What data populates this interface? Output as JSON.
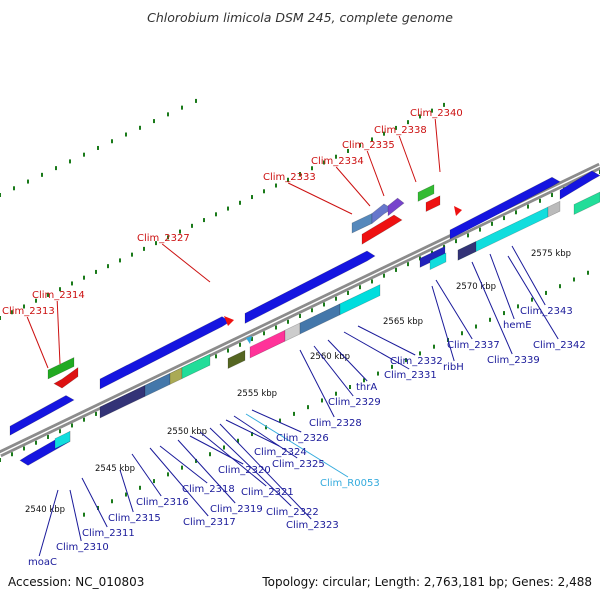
{
  "title": "Chlorobium limicola DSM 245, complete genome",
  "footer": {
    "accession": "Accession: NC_010803",
    "summary": "Topology: circular; Length: 2,763,181 bp; Genes: 2,488"
  },
  "colors": {
    "backbone": "#8c8c8c",
    "forward_gene": "#1515e0",
    "reverse_gene": "#1515e0",
    "highlight_label": "#cc1111",
    "normal_label": "#1a1a9a",
    "rna_label": "#33aadd",
    "dots": "#1a7a1a"
  },
  "scale_marks": [
    "2540 kbp",
    "2545 kbp",
    "2550 kbp",
    "2555 kbp",
    "2560 kbp",
    "2565 kbp",
    "2570 kbp",
    "2575 kbp"
  ],
  "upper_labels": [
    "Clim_2313",
    "Clim_2314",
    "Clim_2327",
    "Clim_2333",
    "Clim_2334",
    "Clim_2335",
    "Clim_2338",
    "Clim_2340"
  ],
  "lower_labels": [
    "moaC",
    "Clim_2310",
    "Clim_2311",
    "Clim_2315",
    "Clim_2316",
    "Clim_2317",
    "Clim_2318",
    "Clim_2319",
    "Clim_2320",
    "Clim_2321",
    "Clim_2322",
    "Clim_2323",
    "Clim_2324",
    "Clim_2325",
    "Clim_R0053",
    "Clim_2326",
    "Clim_2328",
    "Clim_2329",
    "thrA",
    "Clim_2331",
    "Clim_2332",
    "ribH",
    "Clim_2337",
    "Clim_2339",
    "hemE",
    "Clim_2342",
    "Clim_2343"
  ]
}
